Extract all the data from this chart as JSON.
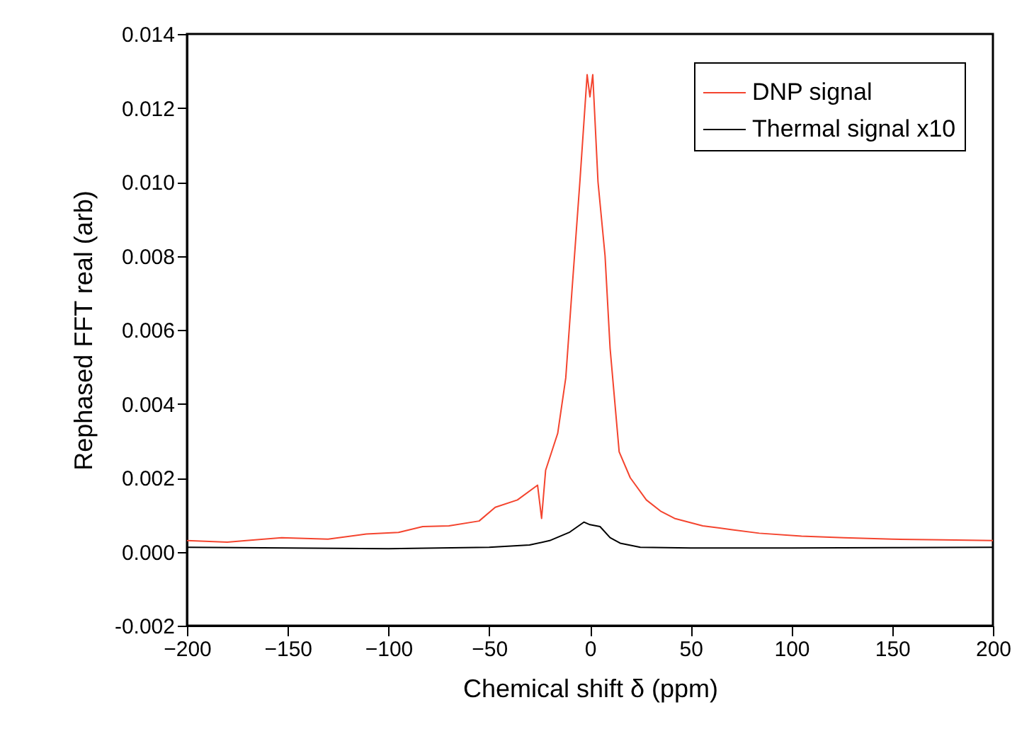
{
  "chart_data": {
    "type": "line",
    "xlabel": "Chemical shift δ (ppm)",
    "ylabel": "Rephased FFT real (arb)",
    "xlim": [
      -200,
      200
    ],
    "xticks": [
      -200,
      -150,
      -100,
      -50,
      0,
      50,
      100,
      150,
      200
    ],
    "ylim": [
      -0.002,
      0.014
    ],
    "yticks": [
      {
        "value": -0.002,
        "label": "-0.002"
      },
      {
        "value": 0,
        "label": "0.000"
      },
      {
        "value": 0.002,
        "label": "0.002"
      },
      {
        "value": 0.004,
        "label": "0.004"
      },
      {
        "value": 0.006,
        "label": "0.006"
      },
      {
        "value": 0.008,
        "label": "0.008"
      },
      {
        "value": 0.01,
        "label": "0.010"
      },
      {
        "value": 0.012,
        "label": "0.012"
      },
      {
        "value": 0.014,
        "label": "0.014"
      }
    ],
    "grid": false,
    "legend": "top right",
    "line_style": "solid",
    "marker": "none",
    "series": [
      {
        "name": "DNP signal",
        "color": "#f4442e",
        "x": [
          -200,
          -180,
          -153,
          -130,
          -111,
          -95,
          -83,
          -70,
          -55,
          -47,
          -36,
          -26,
          -24,
          -22,
          -16,
          -12,
          -9,
          -5,
          -1.4,
          0,
          1.4,
          4,
          7.5,
          10,
          14.5,
          20,
          28,
          35,
          42,
          56,
          70,
          84,
          105,
          126,
          150,
          175,
          200
        ],
        "values": [
          0.0003,
          0.00026,
          0.00038,
          0.00034,
          0.00048,
          0.00052,
          0.00068,
          0.0007,
          0.00083,
          0.0012,
          0.0014,
          0.0018,
          0.0009,
          0.0022,
          0.0032,
          0.0047,
          0.007,
          0.01,
          0.0129,
          0.0123,
          0.0129,
          0.01,
          0.008,
          0.0055,
          0.0027,
          0.002,
          0.0014,
          0.0011,
          0.0009,
          0.0007,
          0.0006,
          0.0005,
          0.00042,
          0.00038,
          0.00034,
          0.00032,
          0.0003
        ]
      },
      {
        "name": "Thermal signal x10",
        "color": "#000000",
        "x": [
          -200,
          -150,
          -100,
          -50,
          -30,
          -20,
          -10,
          -3,
          0,
          5,
          10,
          15,
          25,
          50,
          100,
          150,
          200
        ],
        "values": [
          0.00012,
          0.0001,
          8e-05,
          0.00012,
          0.00018,
          0.0003,
          0.00053,
          0.0008,
          0.00073,
          0.00068,
          0.00038,
          0.00023,
          0.00012,
          0.0001,
          0.0001,
          0.00011,
          0.00012
        ]
      }
    ]
  }
}
